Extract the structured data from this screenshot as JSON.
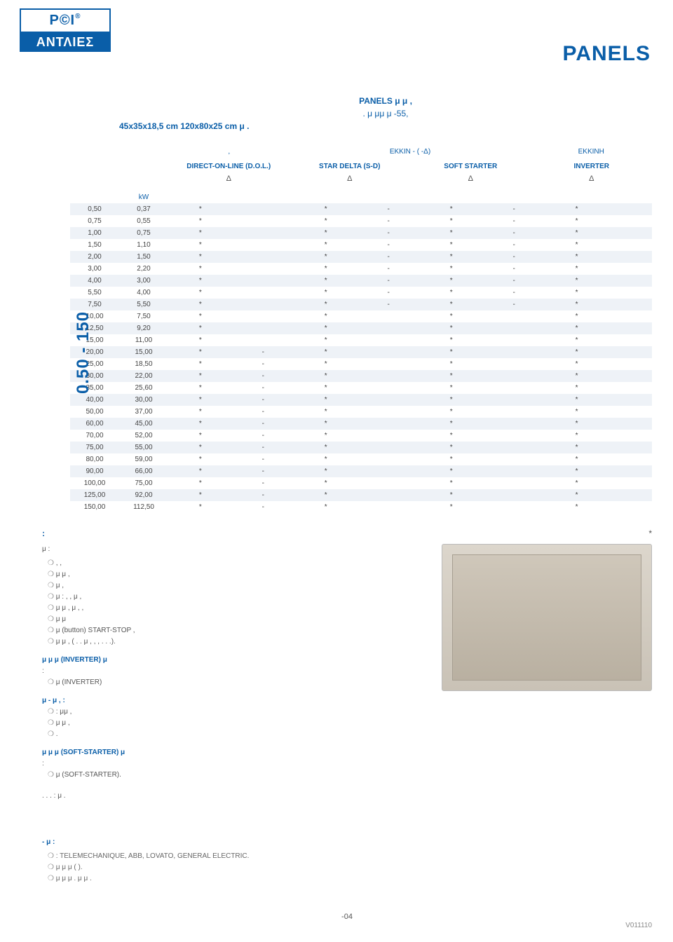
{
  "logo": {
    "top": "P©I",
    "bottom": "ΑΝΤΛΙΕΣ",
    "reg": "®"
  },
  "page_title": "PANELS",
  "intro": {
    "line1": "PANELS μ            μ ,",
    "line2": ".            μ                       μμ   μ                   -55,",
    "dims": "45x35x18,5 cm            120x80x25 cm       μ ."
  },
  "starter_head": {
    "segA_top": ",",
    "segA_sub_left": "EKKIN          -       ( -Δ)",
    "segA_sub_right": "EKKINH",
    "dol": "DIRECT-ON-LINE (D.O.L.)",
    "sd": "STAR DELTA (S-D)",
    "ss": "SOFT STARTER",
    "inv": "INVERTER",
    "delta": "Δ"
  },
  "kw_head": "kW",
  "side_label": "0.50 - 150",
  "table_rows": [
    {
      "a": "0,50",
      "b": "0,37",
      "c3": "*",
      "c4": "",
      "c5": "*",
      "c6": "-",
      "c7": "*",
      "c8": "-",
      "c9": "*",
      "c10": ""
    },
    {
      "a": "0,75",
      "b": "0,55",
      "c3": "*",
      "c4": "",
      "c5": "*",
      "c6": "-",
      "c7": "*",
      "c8": "-",
      "c9": "*",
      "c10": ""
    },
    {
      "a": "1,00",
      "b": "0,75",
      "c3": "*",
      "c4": "",
      "c5": "*",
      "c6": "-",
      "c7": "*",
      "c8": "-",
      "c9": "*",
      "c10": ""
    },
    {
      "a": "1,50",
      "b": "1,10",
      "c3": "*",
      "c4": "",
      "c5": "*",
      "c6": "-",
      "c7": "*",
      "c8": "-",
      "c9": "*",
      "c10": ""
    },
    {
      "a": "2,00",
      "b": "1,50",
      "c3": "*",
      "c4": "",
      "c5": "*",
      "c6": "-",
      "c7": "*",
      "c8": "-",
      "c9": "*",
      "c10": ""
    },
    {
      "a": "3,00",
      "b": "2,20",
      "c3": "*",
      "c4": "",
      "c5": "*",
      "c6": "-",
      "c7": "*",
      "c8": "-",
      "c9": "*",
      "c10": ""
    },
    {
      "a": "4,00",
      "b": "3,00",
      "c3": "*",
      "c4": "",
      "c5": "*",
      "c6": "-",
      "c7": "*",
      "c8": "-",
      "c9": "*",
      "c10": ""
    },
    {
      "a": "5,50",
      "b": "4,00",
      "c3": "*",
      "c4": "",
      "c5": "*",
      "c6": "-",
      "c7": "*",
      "c8": "-",
      "c9": "*",
      "c10": ""
    },
    {
      "a": "7,50",
      "b": "5,50",
      "c3": "*",
      "c4": "",
      "c5": "*",
      "c6": "-",
      "c7": "*",
      "c8": "-",
      "c9": "*",
      "c10": ""
    },
    {
      "a": "10,00",
      "b": "7,50",
      "c3": "*",
      "c4": "",
      "c5": "*",
      "c6": "",
      "c7": "*",
      "c8": "",
      "c9": "*",
      "c10": ""
    },
    {
      "a": "12,50",
      "b": "9,20",
      "c3": "*",
      "c4": "",
      "c5": "*",
      "c6": "",
      "c7": "*",
      "c8": "",
      "c9": "*",
      "c10": ""
    },
    {
      "a": "15,00",
      "b": "11,00",
      "c3": "*",
      "c4": "",
      "c5": "*",
      "c6": "",
      "c7": "*",
      "c8": "",
      "c9": "*",
      "c10": ""
    },
    {
      "a": "20,00",
      "b": "15,00",
      "c3": "*",
      "c4": "-",
      "c5": "*",
      "c6": "",
      "c7": "*",
      "c8": "",
      "c9": "*",
      "c10": ""
    },
    {
      "a": "25,00",
      "b": "18,50",
      "c3": "*",
      "c4": "-",
      "c5": "*",
      "c6": "",
      "c7": "*",
      "c8": "",
      "c9": "*",
      "c10": ""
    },
    {
      "a": "30,00",
      "b": "22,00",
      "c3": "*",
      "c4": "-",
      "c5": "*",
      "c6": "",
      "c7": "*",
      "c8": "",
      "c9": "*",
      "c10": ""
    },
    {
      "a": "35,00",
      "b": "25,60",
      "c3": "*",
      "c4": "-",
      "c5": "*",
      "c6": "",
      "c7": "*",
      "c8": "",
      "c9": "*",
      "c10": ""
    },
    {
      "a": "40,00",
      "b": "30,00",
      "c3": "*",
      "c4": "-",
      "c5": "*",
      "c6": "",
      "c7": "*",
      "c8": "",
      "c9": "*",
      "c10": ""
    },
    {
      "a": "50,00",
      "b": "37,00",
      "c3": "*",
      "c4": "-",
      "c5": "*",
      "c6": "",
      "c7": "*",
      "c8": "",
      "c9": "*",
      "c10": ""
    },
    {
      "a": "60,00",
      "b": "45,00",
      "c3": "*",
      "c4": "-",
      "c5": "*",
      "c6": "",
      "c7": "*",
      "c8": "",
      "c9": "*",
      "c10": ""
    },
    {
      "a": "70,00",
      "b": "52,00",
      "c3": "*",
      "c4": "-",
      "c5": "*",
      "c6": "",
      "c7": "*",
      "c8": "",
      "c9": "*",
      "c10": ""
    },
    {
      "a": "75,00",
      "b": "55,00",
      "c3": "*",
      "c4": "-",
      "c5": "*",
      "c6": "",
      "c7": "*",
      "c8": "",
      "c9": "*",
      "c10": ""
    },
    {
      "a": "80,00",
      "b": "59,00",
      "c3": "*",
      "c4": "-",
      "c5": "*",
      "c6": "",
      "c7": "*",
      "c8": "",
      "c9": "*",
      "c10": ""
    },
    {
      "a": "90,00",
      "b": "66,00",
      "c3": "*",
      "c4": "-",
      "c5": "*",
      "c6": "",
      "c7": "*",
      "c8": "",
      "c9": "*",
      "c10": ""
    },
    {
      "a": "100,00",
      "b": "75,00",
      "c3": "*",
      "c4": "-",
      "c5": "*",
      "c6": "",
      "c7": "*",
      "c8": "",
      "c9": "*",
      "c10": ""
    },
    {
      "a": "125,00",
      "b": "92,00",
      "c3": "*",
      "c4": "-",
      "c5": "*",
      "c6": "",
      "c7": "*",
      "c8": "",
      "c9": "*",
      "c10": ""
    },
    {
      "a": "150,00",
      "b": "112,50",
      "c3": "*",
      "c4": "-",
      "c5": "*",
      "c6": "",
      "c7": "*",
      "c8": "",
      "c9": "*",
      "c10": ""
    }
  ],
  "notes": {
    "heading_colon": ":",
    "asterisk_note": "*",
    "sub_heading": "μ            :",
    "bullets_a": [
      ",                                                              ,",
      "                μ                          μ ,",
      "                      μ ,",
      "μ           :       ,      ,                μ ,",
      "μ   μ ,    μ ,             ,",
      "μ        μ",
      "μ       (button) START-STOP                 ,",
      "μ                                  μ       ,   ( . . μ       ,          ,     ,      . . .)."
    ],
    "inverter_head": "μ          μ  μ            (INVERTER)     μ",
    "inverter_sub": ":",
    "inverter_b1": "μ                     (INVERTER)",
    "softstart_mid_head": "μ            -      μ      ,                                               :",
    "softstart_mid_sub": ":    μμ ,",
    "softstart_mid_b1": "                   μ                     μ       ,",
    "softstart_mid_b2": ".",
    "softstart_head": "μ          μ  μ          (SOFT-STARTER)     μ",
    "softstart_sub": ":",
    "softstart_b1": "μ                 (SOFT-STARTER).",
    "trailing": ". . . : μ                 ."
  },
  "colors": {
    "brand_blue": "#0a5ea8",
    "row_stripe": "#eef2f7",
    "text": "#444444",
    "muted": "#888888"
  },
  "footer": {
    "heading": "-  μ         :",
    "b1": ": TELEMECHANIQUE, ABB, LOVATO, GENERAL ELECTRIC.",
    "b2": "μ        μ          μ     (        ).",
    "b3": "μ                   μ                  μ         .                                                     μ   μ       ."
  },
  "page_number": "-04",
  "version": "V011110"
}
